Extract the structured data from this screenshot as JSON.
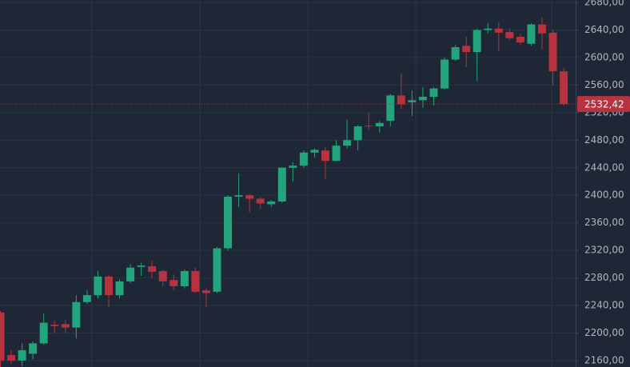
{
  "chart_data": {
    "type": "candlestick",
    "up_color": "#22a57c",
    "down_color": "#b8323f",
    "grid": true,
    "ylim": [
      2150.7,
      2683.5
    ],
    "yticks": [
      {
        "value": 2160,
        "label": "2160,00"
      },
      {
        "value": 2200,
        "label": "2200,00"
      },
      {
        "value": 2240,
        "label": "2240,00"
      },
      {
        "value": 2280,
        "label": "2280,00"
      },
      {
        "value": 2320,
        "label": "2320,00"
      },
      {
        "value": 2360,
        "label": "2360,00"
      },
      {
        "value": 2400,
        "label": "2400,00"
      },
      {
        "value": 2440,
        "label": "2440,00"
      },
      {
        "value": 2480,
        "label": "2480,00"
      },
      {
        "value": 2520,
        "label": "2520,00"
      },
      {
        "value": 2560,
        "label": "2560,00"
      },
      {
        "value": 2600,
        "label": "2600,00"
      },
      {
        "value": 2640,
        "label": "2640,00"
      },
      {
        "value": 2680,
        "label": "2680,00"
      }
    ],
    "last_price": {
      "value": 2532.42,
      "label": "2532,42"
    },
    "open": [
      2230,
      2168,
      2160,
      2170,
      2185,
      2212,
      2213,
      2208,
      2245,
      2255,
      2282,
      2255,
      2275,
      2296,
      2297,
      2290,
      2277,
      2268,
      2290,
      2262,
      2260,
      2323,
      2398,
      2400,
      2395,
      2387,
      2391,
      2440,
      2443,
      2462,
      2465,
      2450,
      2472,
      2480,
      2501,
      2500,
      2508,
      2545,
      2535,
      2538,
      2543,
      2555,
      2597,
      2617,
      2608,
      2640,
      2642,
      2637,
      2630,
      2620,
      2648,
      2636,
      2580
    ],
    "high": [
      2232,
      2175,
      2185,
      2188,
      2228,
      2218,
      2220,
      2255,
      2262,
      2290,
      2285,
      2278,
      2300,
      2302,
      2305,
      2292,
      2285,
      2292,
      2295,
      2265,
      2325,
      2400,
      2432,
      2402,
      2397,
      2393,
      2441,
      2448,
      2465,
      2468,
      2470,
      2480,
      2510,
      2502,
      2520,
      2508,
      2547,
      2577,
      2552,
      2557,
      2557,
      2600,
      2618,
      2630,
      2642,
      2650,
      2652,
      2642,
      2634,
      2650,
      2658,
      2640,
      2585
    ],
    "low": [
      2150,
      2155,
      2152,
      2162,
      2183,
      2200,
      2200,
      2192,
      2242,
      2250,
      2238,
      2250,
      2272,
      2283,
      2280,
      2268,
      2262,
      2265,
      2258,
      2237,
      2258,
      2320,
      2383,
      2375,
      2380,
      2383,
      2389,
      2420,
      2440,
      2455,
      2424,
      2449,
      2468,
      2465,
      2495,
      2491,
      2500,
      2525,
      2515,
      2527,
      2530,
      2553,
      2595,
      2586,
      2566,
      2635,
      2610,
      2625,
      2618,
      2617,
      2612,
      2560,
      2530
    ],
    "close": [
      2160,
      2160,
      2175,
      2185,
      2215,
      2210,
      2208,
      2245,
      2255,
      2282,
      2255,
      2275,
      2295,
      2298,
      2289,
      2275,
      2268,
      2290,
      2260,
      2258,
      2323,
      2398,
      2400,
      2395,
      2388,
      2391,
      2440,
      2443,
      2462,
      2466,
      2450,
      2472,
      2480,
      2500,
      2500,
      2505,
      2545,
      2532,
      2538,
      2543,
      2555,
      2597,
      2615,
      2608,
      2640,
      2642,
      2636,
      2628,
      2622,
      2648,
      2635,
      2580,
      2532.42
    ]
  }
}
